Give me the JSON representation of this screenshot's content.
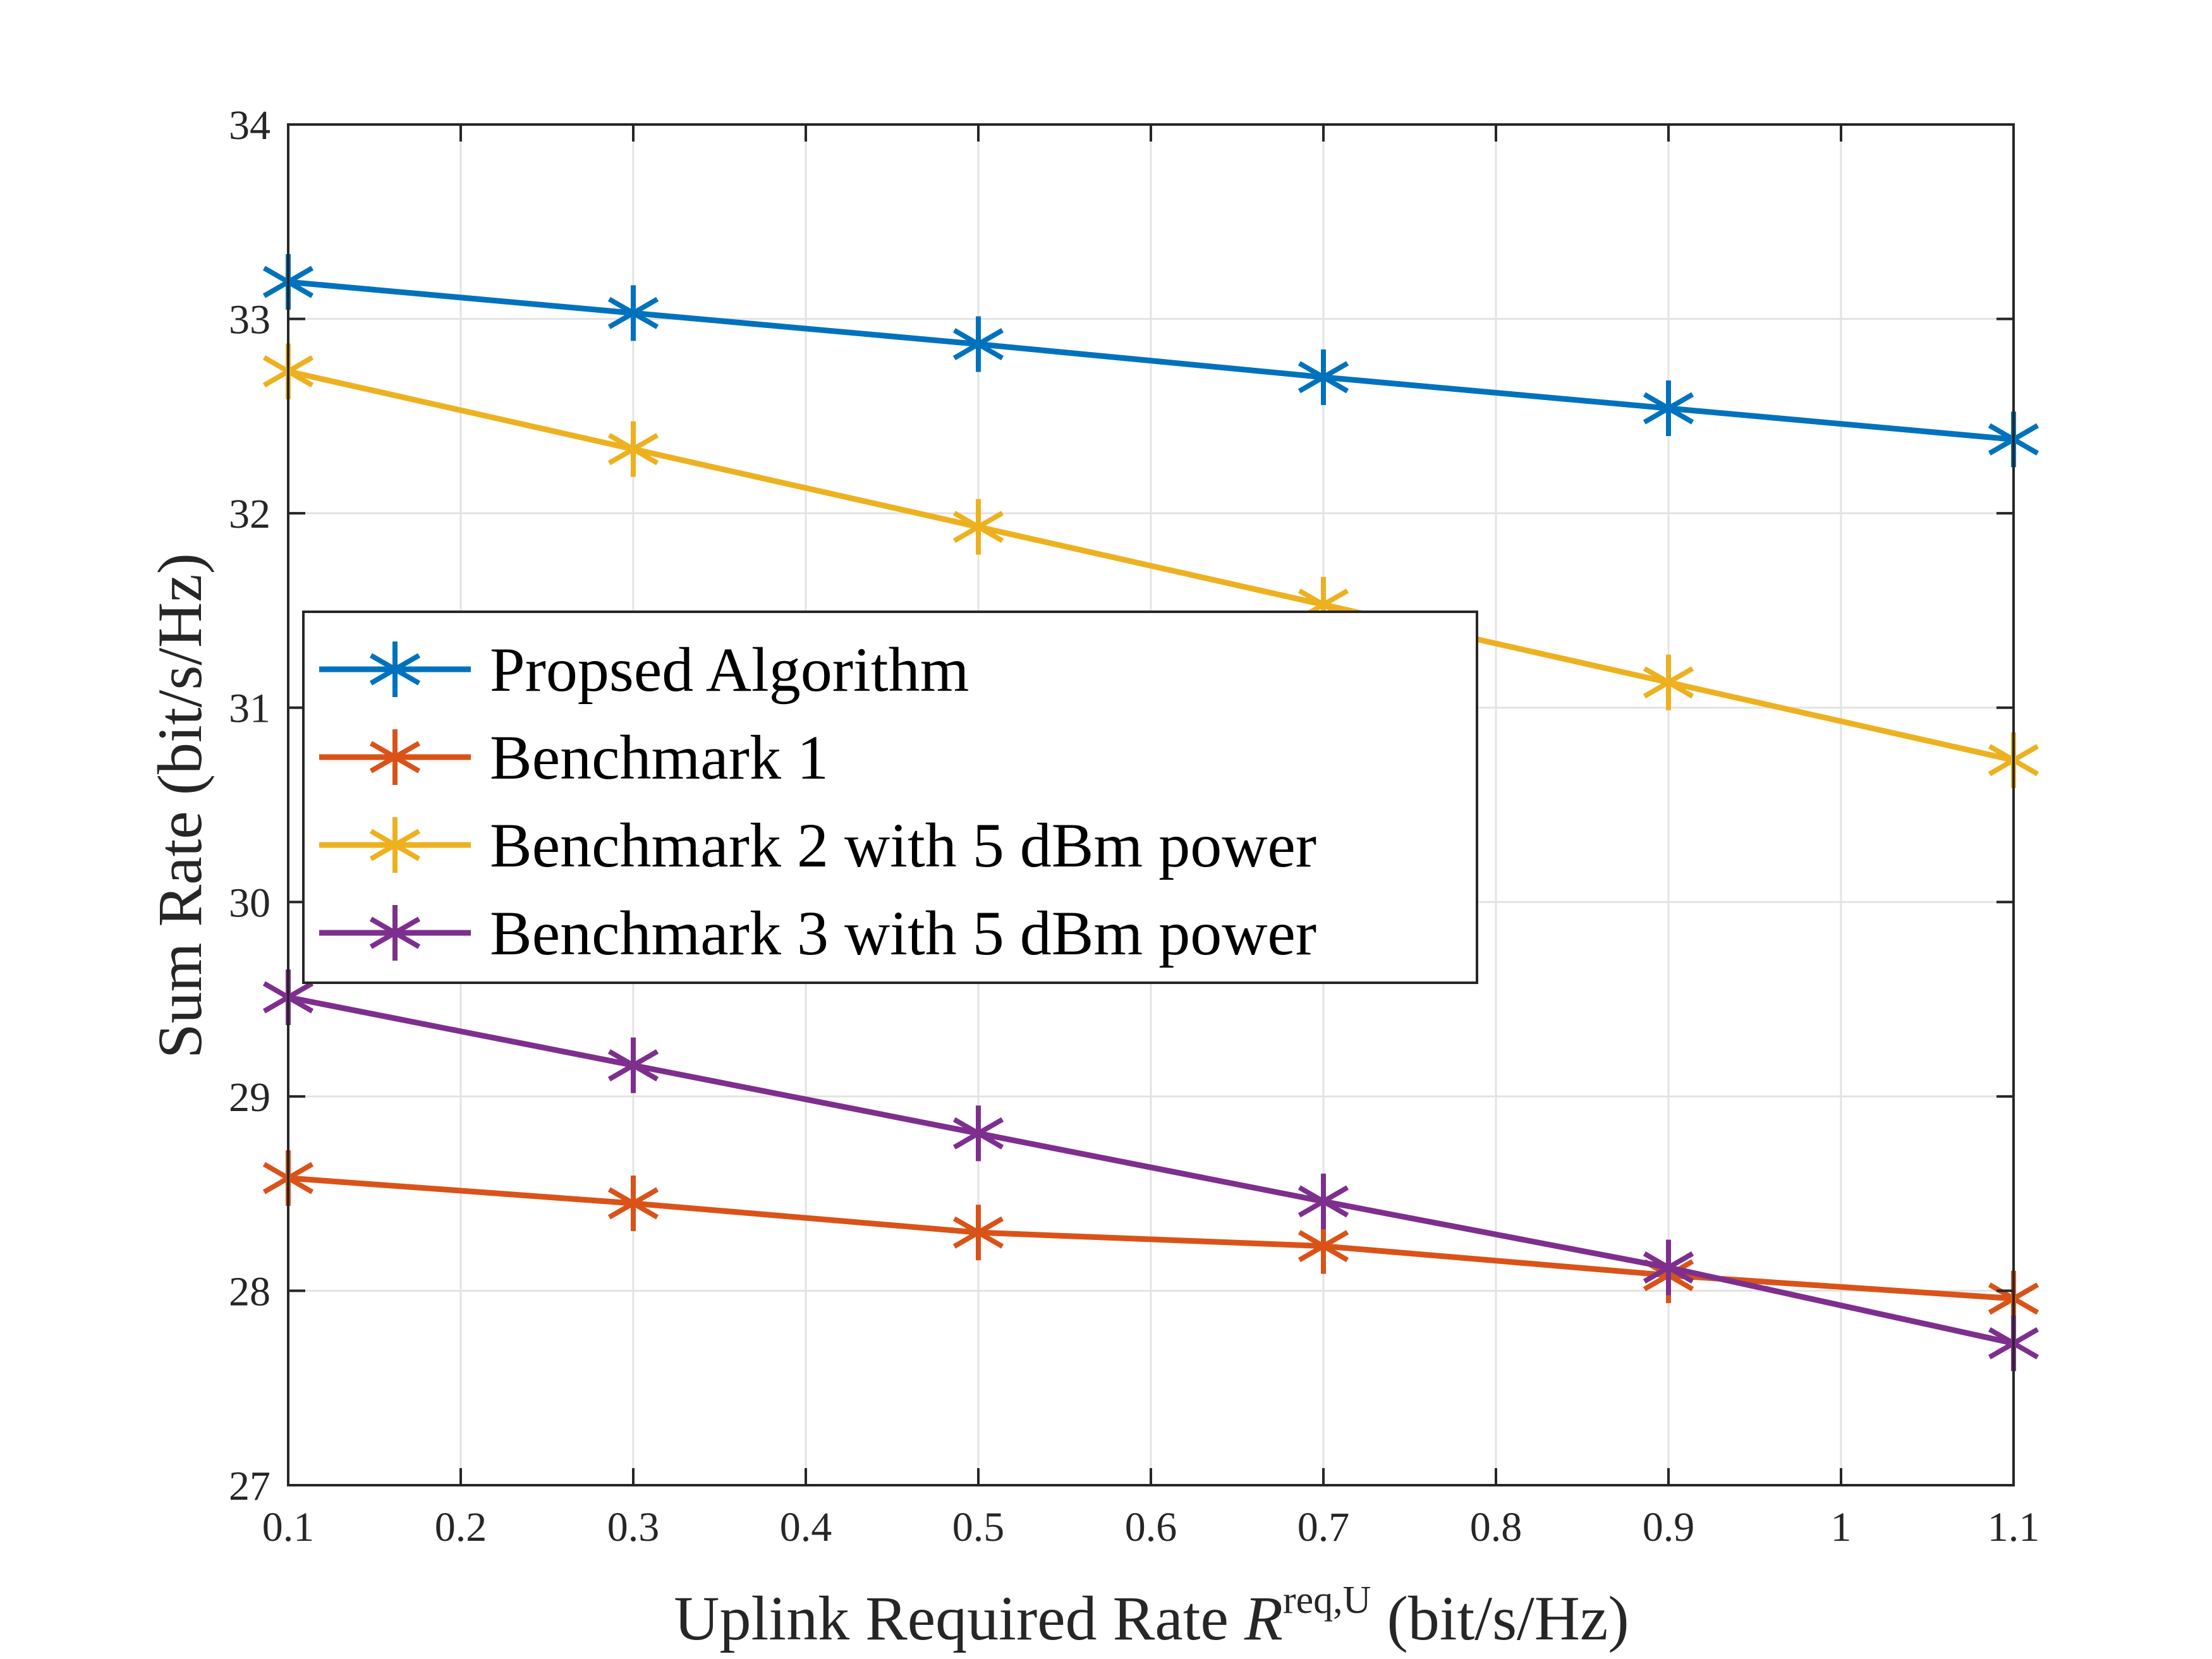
{
  "chart_data": {
    "type": "line",
    "title": "",
    "xlabel": {
      "prefix": "Uplink Required Rate ",
      "symbol": "R",
      "superscript": "req,U",
      "suffix": " (bit/s/Hz)"
    },
    "ylabel": "Sum Rate (bit/s/Hz)",
    "xlim": [
      0.1,
      1.1
    ],
    "ylim": [
      27,
      34
    ],
    "xticks": [
      "0.1",
      "0.2",
      "0.3",
      "0.4",
      "0.5",
      "0.6",
      "0.7",
      "0.8",
      "0.9",
      "1",
      "1.1"
    ],
    "yticks": [
      "27",
      "28",
      "29",
      "30",
      "31",
      "32",
      "33",
      "34"
    ],
    "grid": true,
    "legend_position": "center-left",
    "x": [
      0.1,
      0.3,
      0.5,
      0.7,
      0.9,
      1.1
    ],
    "series": [
      {
        "name": "Propsed Algorithm",
        "color": "#0072bd",
        "marker": "asterisk",
        "values": [
          33.19,
          33.03,
          32.87,
          32.7,
          32.54,
          32.38
        ]
      },
      {
        "name": "Benchmark 1",
        "color": "#d95319",
        "marker": "asterisk",
        "values": [
          28.58,
          28.45,
          28.3,
          28.23,
          28.08,
          27.96
        ]
      },
      {
        "name": "Benchmark 2 with 5 dBm power",
        "color": "#edb120",
        "marker": "asterisk",
        "values": [
          32.73,
          32.33,
          31.93,
          31.53,
          31.13,
          30.73
        ]
      },
      {
        "name": "Benchmark 3 with 5 dBm power",
        "color": "#7e2f8e",
        "marker": "asterisk",
        "values": [
          29.51,
          29.16,
          28.81,
          28.46,
          28.12,
          27.73
        ]
      }
    ]
  }
}
